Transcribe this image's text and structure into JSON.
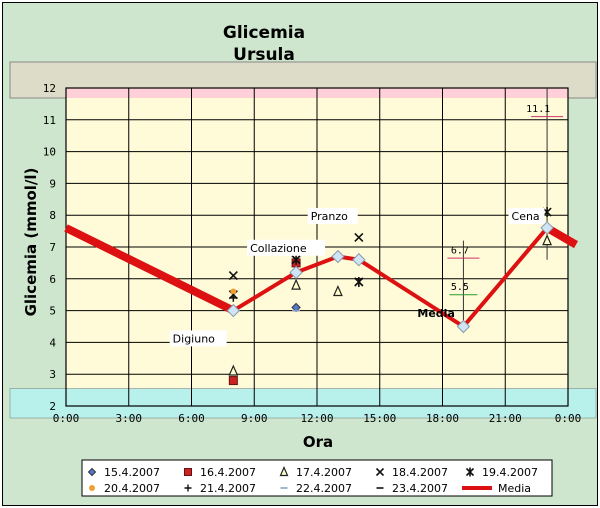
{
  "chart_data": {
    "type": "scatter",
    "title": "Glicemia",
    "subtitle": "Ursula",
    "xlabel": "Ora",
    "ylabel": "Glicemia (mmol/l)",
    "xlim": [
      0,
      24
    ],
    "ylim": [
      2,
      12
    ],
    "x_ticks": [
      "0:00",
      "3:00",
      "6:00",
      "9:00",
      "12:00",
      "15:00",
      "18:00",
      "21:00",
      "0:00"
    ],
    "y_ticks": [
      "2",
      "3",
      "4",
      "5",
      "6",
      "7",
      "8",
      "9",
      "10",
      "11",
      "12"
    ],
    "bands": [
      {
        "from": 12,
        "to": 13,
        "color": "#ffd0d8"
      },
      {
        "from": 2,
        "to": 2.55,
        "color": "#b8f0ec"
      }
    ],
    "series": [
      {
        "name": "15.4.2007",
        "marker": "diamond",
        "color": "#333333",
        "points": [
          [
            11,
            5.1
          ]
        ]
      },
      {
        "name": "16.4.2007",
        "marker": "square",
        "color": "#cc2222",
        "points": [
          [
            8,
            2.8
          ],
          [
            11,
            6.5
          ]
        ]
      },
      {
        "name": "17.4.2007",
        "marker": "triangle",
        "color": "#222222",
        "points": [
          [
            8,
            3.1
          ],
          [
            11,
            5.8
          ],
          [
            13,
            5.6
          ],
          [
            23,
            7.2
          ]
        ]
      },
      {
        "name": "18.4.2007",
        "marker": "x",
        "color": "#111111",
        "points": [
          [
            8,
            6.1
          ],
          [
            11,
            6.6
          ],
          [
            13,
            7.9
          ],
          [
            14,
            7.3
          ],
          [
            14,
            5.9
          ]
        ]
      },
      {
        "name": "19.4.2007",
        "marker": "star",
        "color": "#111111",
        "points": [
          [
            8,
            5.5
          ],
          [
            11,
            6.6
          ],
          [
            13,
            7.9
          ],
          [
            14,
            5.9
          ],
          [
            23,
            8.1
          ]
        ]
      },
      {
        "name": "20.4.2007",
        "marker": "dot",
        "color": "#f0a030",
        "points": [
          [
            8,
            5.6
          ]
        ]
      },
      {
        "name": "21.4.2007",
        "marker": "plus",
        "color": "#111111",
        "points": [
          [
            8,
            5.4
          ]
        ]
      },
      {
        "name": "22.4.2007",
        "marker": "dash",
        "color": "#8aa0c8",
        "points": [
          [
            11,
            5.0
          ]
        ]
      },
      {
        "name": "23.4.2007",
        "marker": "dash",
        "color": "#111111",
        "points": [
          [
            14,
            6.0
          ]
        ]
      },
      {
        "name": "Media",
        "marker": "diamond-open",
        "color": "#dd1111",
        "points": [
          [
            0,
            7.6
          ],
          [
            8,
            5.0
          ],
          [
            11,
            6.2
          ],
          [
            13,
            6.7
          ],
          [
            14,
            6.6
          ],
          [
            19,
            4.5
          ],
          [
            23,
            7.6
          ],
          [
            24,
            7.2
          ]
        ]
      }
    ],
    "annotations": [
      {
        "text": "Digiuno",
        "x": 5.1,
        "y": 4.0
      },
      {
        "text": "Collazione",
        "x": 8.8,
        "y": 6.85
      },
      {
        "text": "Pranzo",
        "x": 11.7,
        "y": 7.85
      },
      {
        "text": "Media",
        "x": 16.8,
        "y": 4.8,
        "color": "#dd1111"
      },
      {
        "text": "Cena",
        "x": 21.3,
        "y": 7.85
      },
      {
        "text": "6.7",
        "x": 18.4,
        "y": 6.8
      },
      {
        "text": "5.5",
        "x": 18.4,
        "y": 5.65
      },
      {
        "text": "11.1",
        "x": 22.0,
        "y": 11.25
      }
    ],
    "ranges": [
      {
        "x": 19,
        "y1": 4.5,
        "y2": 7.2,
        "tick_lo": 5.5,
        "tick_hi": 6.65,
        "color_lo": "#2a9a2a",
        "color_hi": "#cc3366"
      },
      {
        "x": 23,
        "y1": 6.6,
        "y2": 12,
        "tick_hi": 11.1,
        "color_hi": "#cc3366"
      }
    ],
    "legend_position": "bottom",
    "grid": true
  }
}
